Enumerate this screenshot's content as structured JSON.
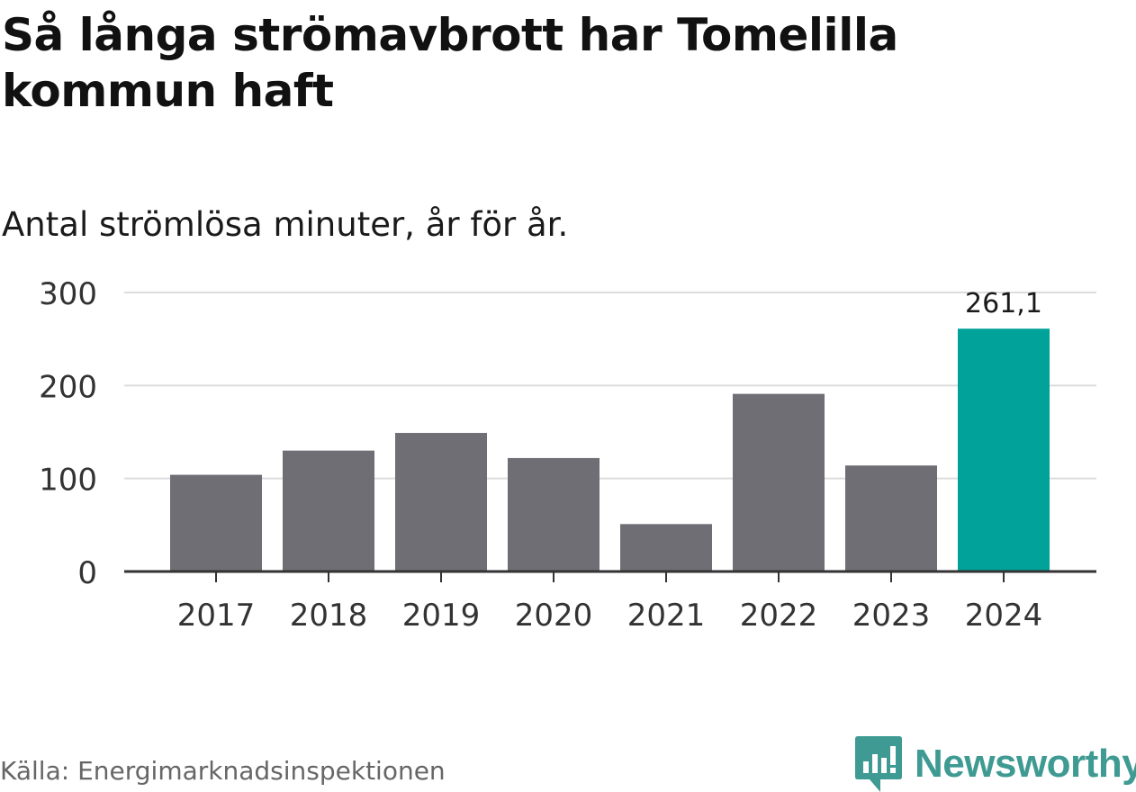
{
  "header": {
    "title": "Så långa strömavbrott har Tomelilla kommun haft",
    "subtitle": "Antal strömlösa minuter, år för år."
  },
  "footer": {
    "source": "Källa: Energimarknadsinspektionen",
    "brand": "Newsworthy"
  },
  "colors": {
    "bar_default": "#6f6e75",
    "bar_highlight": "#00a29a",
    "gridline": "#dddddd",
    "axis": "#333333",
    "brand": "#3e9a92"
  },
  "chart_data": {
    "type": "bar",
    "title": "Så långa strömavbrott har Tomelilla kommun haft",
    "subtitle": "Antal strömlösa minuter, år för år.",
    "xlabel": "",
    "ylabel": "",
    "categories": [
      "2017",
      "2018",
      "2019",
      "2020",
      "2021",
      "2022",
      "2023",
      "2024"
    ],
    "values": [
      104,
      130,
      149,
      122,
      51,
      191,
      114,
      261.1
    ],
    "highlight_index": 7,
    "data_labels": [
      {
        "index": 7,
        "text": "261,1"
      }
    ],
    "ylim": [
      0,
      300
    ],
    "yticks": [
      0,
      100,
      200,
      300
    ],
    "ytick_labels": [
      "0",
      "100",
      "200",
      "300"
    ],
    "grid": true,
    "legend": "none"
  }
}
